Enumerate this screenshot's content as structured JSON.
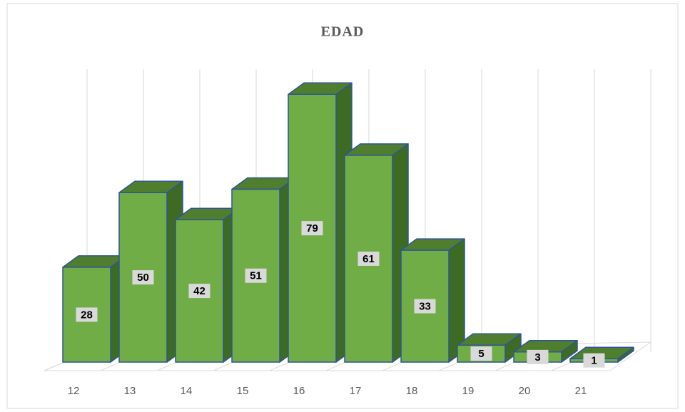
{
  "chart_data": {
    "type": "bar3d",
    "title": "EDAD",
    "categories": [
      "12",
      "13",
      "14",
      "15",
      "16",
      "17",
      "18",
      "19",
      "20",
      "21"
    ],
    "values": [
      28,
      50,
      42,
      51,
      79,
      61,
      33,
      5,
      3,
      1
    ],
    "color": "#70ad47",
    "ylim": [
      0,
      90
    ],
    "grid": true
  }
}
